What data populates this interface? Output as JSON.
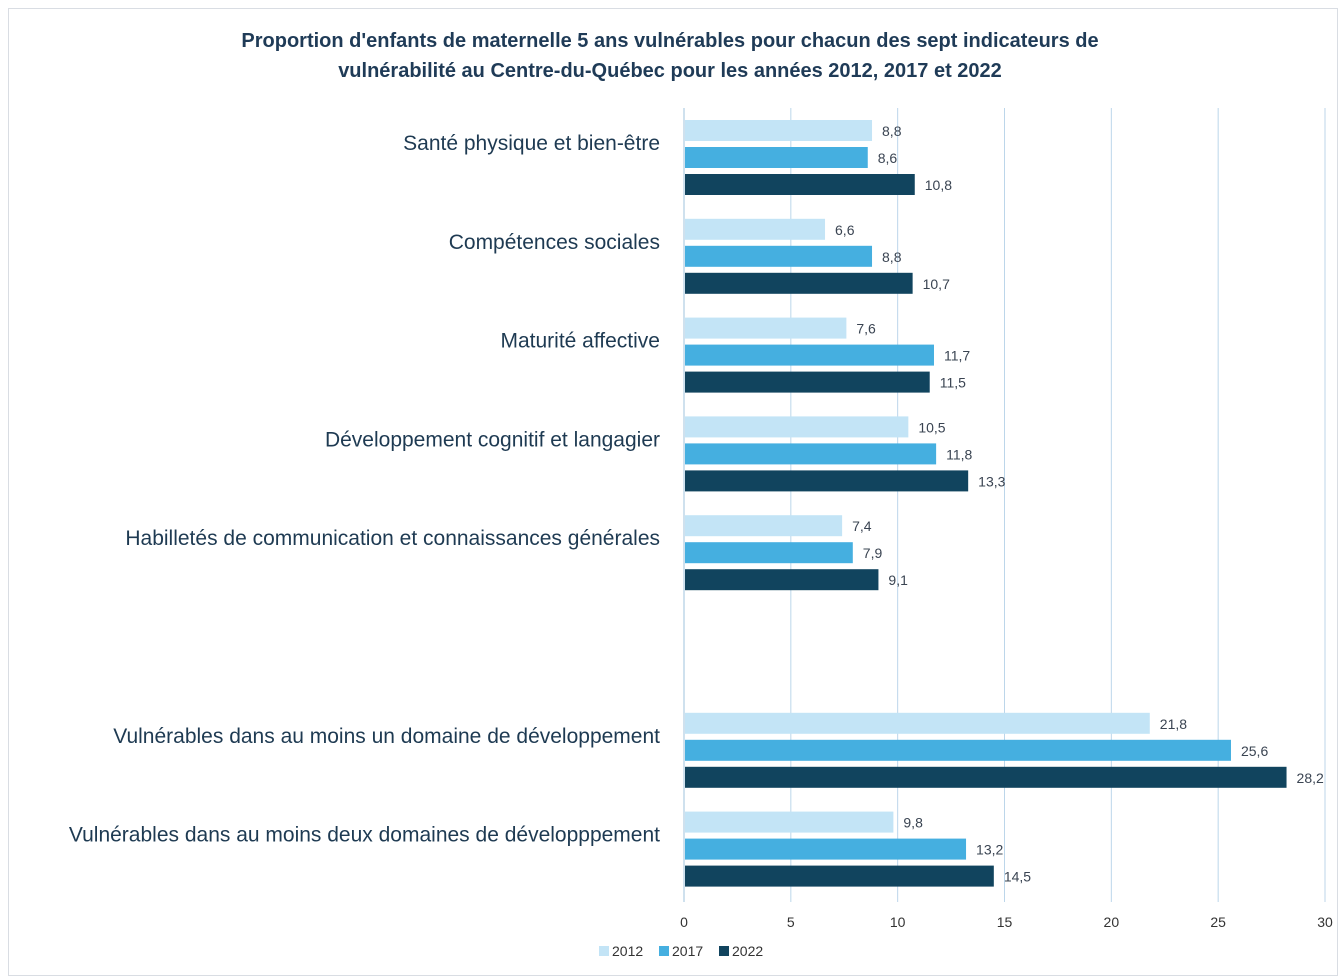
{
  "chart_data": {
    "type": "bar",
    "orientation": "horizontal",
    "title_line1": "Proportion d'enfants de maternelle 5 ans vulnérables pour chacun des sept indicateurs de",
    "title_line2": "vulnérabilité au Centre-du-Québec pour les années 2012, 2017 et 2022",
    "categories": [
      "Santé physique et bien-être",
      "Compétences sociales",
      "Maturité affective",
      "Développement cognitif et langagier",
      "Habilletés de communication et connaissances générales",
      "",
      "Vulnérables dans au moins un domaine de développement",
      "Vulnérables dans au moins deux domaines de développpement"
    ],
    "series": [
      {
        "name": "2012",
        "color": "#c3e4f6",
        "values": [
          8.8,
          6.6,
          7.6,
          10.5,
          7.4,
          null,
          21.8,
          9.8
        ]
      },
      {
        "name": "2017",
        "color": "#45afe0",
        "values": [
          8.6,
          8.8,
          11.7,
          11.8,
          7.9,
          null,
          25.6,
          13.2
        ]
      },
      {
        "name": "2022",
        "color": "#11445e",
        "values": [
          10.8,
          10.7,
          11.5,
          13.3,
          9.1,
          null,
          28.2,
          14.5
        ]
      }
    ],
    "xlim": [
      0,
      30
    ],
    "xticks": [
      0,
      5,
      10,
      15,
      20,
      25,
      30
    ],
    "decimal_separator": ",",
    "grid": "vertical",
    "gridline_color": "#bcd6ea",
    "legend_position": "bottom"
  }
}
